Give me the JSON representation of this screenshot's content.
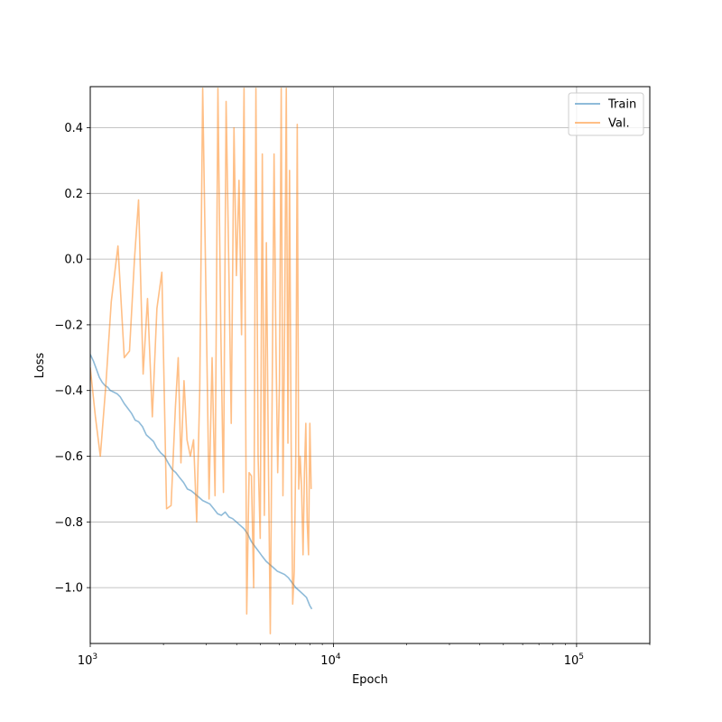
{
  "chart_data": {
    "type": "line",
    "xlabel": "Epoch",
    "ylabel": "Loss",
    "xscale": "log",
    "xlim": [
      1000,
      200000
    ],
    "ylim": [
      -1.17,
      0.525
    ],
    "grid": true,
    "legend_position": "top-right",
    "x_ticks": [
      {
        "value": 1000,
        "base": "10",
        "exp": "3"
      },
      {
        "value": 10000,
        "base": "10",
        "exp": "4"
      },
      {
        "value": 100000,
        "base": "10",
        "exp": "5"
      }
    ],
    "y_ticks": [
      {
        "value": 0.4,
        "label": "0.4"
      },
      {
        "value": 0.2,
        "label": "0.2"
      },
      {
        "value": 0.0,
        "label": "0.0"
      },
      {
        "value": -0.2,
        "label": "−0.2"
      },
      {
        "value": -0.4,
        "label": "−0.4"
      },
      {
        "value": -0.6,
        "label": "−0.6"
      },
      {
        "value": -0.8,
        "label": "−0.8"
      },
      {
        "value": -1.0,
        "label": "−1.0"
      }
    ],
    "series": [
      {
        "name": "Train",
        "color": "#1f77b4",
        "x": [
          1000,
          1030,
          1060,
          1090,
          1120,
          1150,
          1180,
          1210,
          1250,
          1290,
          1330,
          1380,
          1430,
          1480,
          1530,
          1580,
          1640,
          1700,
          1760,
          1820,
          1880,
          1950,
          2020,
          2090,
          2170,
          2250,
          2330,
          2420,
          2510,
          2600,
          2700,
          2800,
          2900,
          3000,
          3100,
          3220,
          3340,
          3460,
          3590,
          3720,
          3850,
          3990,
          4130,
          4280,
          4430,
          4600,
          4760,
          4930,
          5100,
          5290,
          5480,
          5680,
          5880,
          6090,
          6300,
          6530,
          6760,
          7000,
          7250,
          7500,
          7750,
          8000,
          8150
        ],
        "y": [
          -0.29,
          -0.31,
          -0.335,
          -0.36,
          -0.375,
          -0.385,
          -0.39,
          -0.4,
          -0.405,
          -0.41,
          -0.42,
          -0.44,
          -0.455,
          -0.47,
          -0.49,
          -0.495,
          -0.51,
          -0.535,
          -0.545,
          -0.555,
          -0.575,
          -0.59,
          -0.6,
          -0.62,
          -0.64,
          -0.65,
          -0.665,
          -0.68,
          -0.7,
          -0.705,
          -0.715,
          -0.725,
          -0.735,
          -0.74,
          -0.745,
          -0.76,
          -0.775,
          -0.78,
          -0.77,
          -0.785,
          -0.79,
          -0.8,
          -0.81,
          -0.82,
          -0.835,
          -0.86,
          -0.875,
          -0.89,
          -0.905,
          -0.92,
          -0.93,
          -0.94,
          -0.95,
          -0.955,
          -0.96,
          -0.97,
          -0.985,
          -1.0,
          -1.01,
          -1.02,
          -1.03,
          -1.055,
          -1.065
        ]
      },
      {
        "name": "Val.",
        "color": "#ff7f0e",
        "x": [
          1000,
          1050,
          1100,
          1160,
          1220,
          1300,
          1380,
          1450,
          1520,
          1580,
          1650,
          1720,
          1800,
          1880,
          1970,
          2060,
          2150,
          2240,
          2300,
          2360,
          2430,
          2500,
          2580,
          2660,
          2740,
          2820,
          2900,
          2990,
          3080,
          3170,
          3260,
          3350,
          3440,
          3530,
          3620,
          3710,
          3800,
          3900,
          3990,
          4090,
          4190,
          4290,
          4400,
          4500,
          4600,
          4700,
          4800,
          4900,
          5000,
          5100,
          5200,
          5300,
          5400,
          5500,
          5600,
          5700,
          5800,
          5900,
          6000,
          6100,
          6200,
          6300,
          6400,
          6500,
          6600,
          6700,
          6800,
          6900,
          7000,
          7100,
          7200,
          7300,
          7400,
          7500,
          7600,
          7700,
          7800,
          7900,
          8000,
          8100
        ],
        "y": [
          -0.33,
          -0.48,
          -0.6,
          -0.38,
          -0.13,
          0.04,
          -0.3,
          -0.28,
          0.0,
          0.18,
          -0.35,
          -0.12,
          -0.48,
          -0.15,
          -0.04,
          -0.76,
          -0.75,
          -0.45,
          -0.3,
          -0.62,
          -0.37,
          -0.55,
          -0.6,
          -0.55,
          -0.8,
          -0.4,
          0.52,
          -0.1,
          -0.73,
          -0.3,
          -0.72,
          0.52,
          -0.2,
          -0.71,
          0.48,
          0.0,
          -0.5,
          0.4,
          -0.05,
          0.24,
          -0.23,
          0.52,
          -1.08,
          -0.65,
          -0.66,
          -1.0,
          0.52,
          -0.6,
          -0.85,
          0.32,
          -0.78,
          0.05,
          -0.6,
          -1.14,
          -0.4,
          0.32,
          -0.25,
          -0.65,
          -0.38,
          0.52,
          -0.72,
          -0.2,
          0.52,
          -0.56,
          0.27,
          -0.55,
          -1.05,
          -0.95,
          -0.6,
          0.41,
          -0.7,
          -0.6,
          -0.7,
          -0.9,
          -0.65,
          -0.5,
          -0.8,
          -0.9,
          -0.5,
          -0.7
        ]
      }
    ]
  }
}
